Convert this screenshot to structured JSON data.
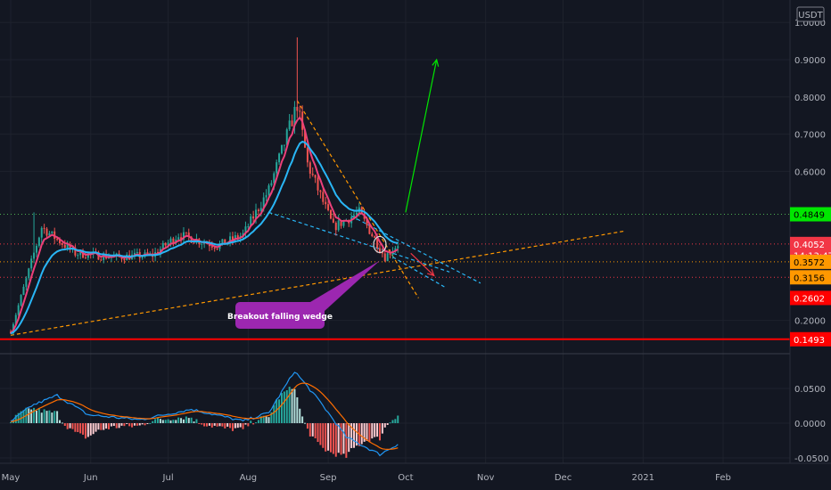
{
  "currency_label": "USDT",
  "price_axis": {
    "labels": [
      "1.0000",
      "0.9000",
      "0.8000",
      "0.7000",
      "0.6000",
      "0.2000"
    ],
    "values": [
      1.0,
      0.9,
      0.8,
      0.7,
      0.6,
      0.2
    ]
  },
  "osc_axis": {
    "labels": [
      "0.0500",
      "0.0000",
      "-0.0500"
    ],
    "values": [
      0.05,
      0.0,
      -0.05
    ]
  },
  "time_axis": {
    "labels": [
      "May",
      "Jun",
      "Jul",
      "Aug",
      "Sep",
      "Oct",
      "Nov",
      "Dec",
      "2021",
      "Feb"
    ],
    "days": [
      0,
      31,
      61,
      92,
      123,
      153,
      184,
      214,
      245,
      276
    ]
  },
  "badges": [
    {
      "text": "0.4849",
      "price": 0.4849,
      "bg": "#00e600",
      "fg": "#000000",
      "line": "#4caf50",
      "style": "dotted"
    },
    {
      "text": "0.4052",
      "price": 0.4052,
      "bg": "#f23645",
      "fg": "#ffffff",
      "line": "#f23645",
      "style": "dotted"
    },
    {
      "text": "14:13:47",
      "price": 0.375,
      "bg": "#f23645",
      "fg": "#ffffff",
      "line": "",
      "style": "none"
    },
    {
      "text": "0.3572",
      "price": 0.3572,
      "bg": "#ff9800",
      "fg": "#000000",
      "line": "#ff9800",
      "style": "dotted"
    },
    {
      "text": "0.3156",
      "price": 0.3156,
      "bg": "#ff9800",
      "fg": "#000000",
      "line": "#f23645",
      "style": "dotted"
    },
    {
      "text": "0.2602",
      "price": 0.2602,
      "bg": "#ff0000",
      "fg": "#ffffff",
      "line": "",
      "style": "none"
    },
    {
      "text": "0.1493",
      "price": 0.1493,
      "bg": "#ff0000",
      "fg": "#ffffff",
      "line": "#ff0000",
      "style": "solid"
    }
  ],
  "annotation": {
    "text": "Breakout falling wedge",
    "bg": "#9c27b0",
    "fg": "#ffffff"
  },
  "colors": {
    "up": "#26a69a",
    "down": "#ef5350",
    "ema_fast": "#ec407a",
    "ema_slow": "#29b6f6",
    "macd": "#2196f3",
    "signal": "#ff6d00"
  },
  "chart_data": {
    "type": "candlestick",
    "x_unit": "days since May 1 2020",
    "ylim": [
      0.12,
      1.0
    ],
    "price_key": [
      {
        "day": 0,
        "price": 0.17
      },
      {
        "day": 12,
        "price": 0.45
      },
      {
        "day": 25,
        "price": 0.38
      },
      {
        "day": 40,
        "price": 0.37
      },
      {
        "day": 55,
        "price": 0.375
      },
      {
        "day": 65,
        "price": 0.43
      },
      {
        "day": 80,
        "price": 0.4
      },
      {
        "day": 90,
        "price": 0.43
      },
      {
        "day": 100,
        "price": 0.55
      },
      {
        "day": 111,
        "price": 0.78
      },
      {
        "day": 115,
        "price": 0.62
      },
      {
        "day": 125,
        "price": 0.45
      },
      {
        "day": 135,
        "price": 0.49
      },
      {
        "day": 145,
        "price": 0.37
      },
      {
        "day": 150,
        "price": 0.4052
      }
    ],
    "spike_highs": [
      {
        "day": 9,
        "price": 0.49
      },
      {
        "day": 111,
        "price": 0.96
      }
    ],
    "trendlines": [
      {
        "name": "upper wedge",
        "from": {
          "day": 111,
          "price": 0.79
        },
        "to": {
          "day": 158,
          "price": 0.26
        },
        "color": "#ff9800"
      },
      {
        "name": "ascending support",
        "from": {
          "day": 0,
          "price": 0.16
        },
        "to": {
          "day": 238,
          "price": 0.44
        },
        "color": "#ff9800"
      },
      {
        "name": "channel top",
        "from": {
          "day": 132,
          "price": 0.48
        },
        "to": {
          "day": 182,
          "price": 0.3
        },
        "color": "#29b6f6"
      },
      {
        "name": "channel middle",
        "from": {
          "day": 100,
          "price": 0.49
        },
        "to": {
          "day": 170,
          "price": 0.33
        },
        "color": "#29b6f6"
      },
      {
        "name": "channel bottom",
        "from": {
          "day": 148,
          "price": 0.37
        },
        "to": {
          "day": 168,
          "price": 0.29
        },
        "color": "#29b6f6"
      }
    ],
    "arrows": [
      {
        "from": {
          "day": 153,
          "price": 0.49
        },
        "to": {
          "day": 165,
          "price": 0.9
        },
        "color": "#00e600"
      },
      {
        "from": {
          "day": 155,
          "price": 0.38
        },
        "to": {
          "day": 164,
          "price": 0.32
        },
        "color": "#f23645"
      }
    ],
    "callout": {
      "target": {
        "day": 143,
        "price": 0.375
      }
    },
    "macd_key": [
      {
        "day": 0,
        "value": 0.002
      },
      {
        "day": 8,
        "value": 0.025
      },
      {
        "day": 18,
        "value": 0.04
      },
      {
        "day": 30,
        "value": 0.012
      },
      {
        "day": 50,
        "value": 0.005
      },
      {
        "day": 70,
        "value": 0.02
      },
      {
        "day": 90,
        "value": 0.003
      },
      {
        "day": 100,
        "value": 0.015
      },
      {
        "day": 110,
        "value": 0.075
      },
      {
        "day": 120,
        "value": 0.03
      },
      {
        "day": 130,
        "value": -0.02
      },
      {
        "day": 143,
        "value": -0.045
      },
      {
        "day": 150,
        "value": -0.03
      }
    ]
  }
}
